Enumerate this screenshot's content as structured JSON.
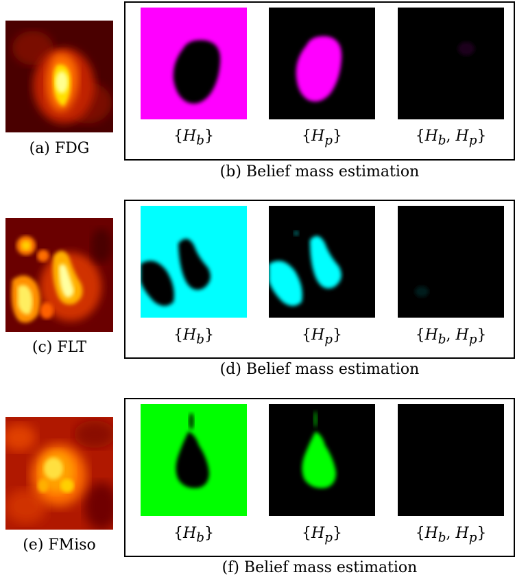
{
  "rows": [
    {
      "pet_caption": "(a) FDG",
      "belief_caption": "(b) Belief mass estimation",
      "mass_color": "#ff00ff"
    },
    {
      "pet_caption": "(c) FLT",
      "belief_caption": "(d) Belief mass estimation",
      "mass_color": "#00ffff"
    },
    {
      "pet_caption": "(e) FMiso",
      "belief_caption": "(f) Belief mass estimation",
      "mass_color": "#00ff00"
    }
  ],
  "hypotheses": {
    "hb_open": "{",
    "hb_body": "H",
    "hb_sub": "b",
    "hb_close": "}",
    "hp_body": "H",
    "hp_sub": "p",
    "hbp_sep": ","
  }
}
